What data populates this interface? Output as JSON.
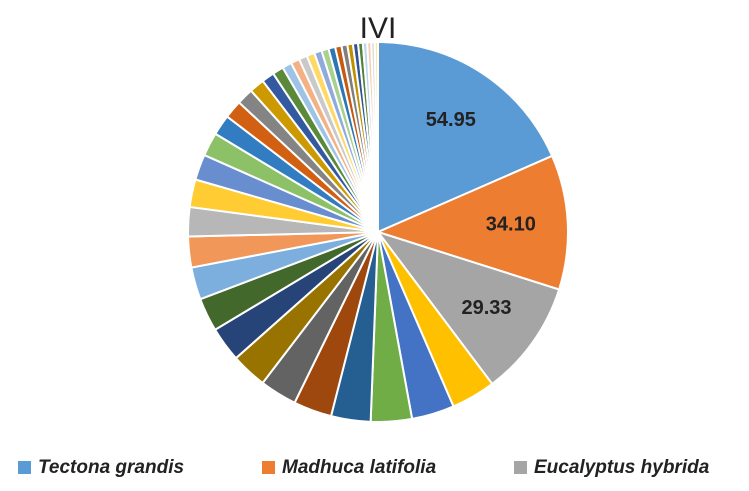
{
  "chart_data": {
    "type": "pie",
    "title": "IVI",
    "categories": [
      "Tectona grandis",
      "Madhuca latifolia",
      "Eucalyptus hybrida",
      null,
      null,
      null,
      null,
      null,
      null,
      null,
      null,
      null,
      null,
      null,
      null,
      null,
      null,
      null,
      null,
      null,
      null,
      null,
      null,
      null,
      null,
      null,
      null,
      null,
      null,
      null,
      null,
      null,
      null,
      null,
      null,
      null,
      null,
      null,
      null,
      null
    ],
    "values": [
      54.95,
      34.1,
      29.33,
      11.2,
      10.8,
      10.4,
      10.0,
      9.7,
      9.4,
      9.1,
      8.8,
      8.5,
      8.2,
      7.8,
      7.4,
      7.0,
      6.5,
      6.0,
      5.2,
      4.6,
      4.2,
      3.8,
      3.2,
      2.8,
      2.4,
      2.2,
      2.1,
      2.0,
      1.9,
      1.8,
      1.7,
      1.6,
      1.5,
      1.4,
      1.3,
      1.2,
      1.1,
      1.0,
      0.9,
      0.8
    ],
    "value_labels": [
      "54.95",
      "34.10",
      "29.33",
      null,
      null,
      null,
      null,
      null,
      null,
      null,
      null,
      null,
      null,
      null,
      null,
      null,
      null,
      null,
      null,
      null,
      null,
      null,
      null,
      null,
      null,
      null,
      null,
      null,
      null,
      null,
      null,
      null,
      null,
      null,
      null,
      null,
      null,
      null,
      null,
      null
    ],
    "colors": [
      "#5b9bd5",
      "#ed7d31",
      "#a5a5a5",
      "#ffc000",
      "#4472c4",
      "#70ad47",
      "#255e91",
      "#9e480e",
      "#636363",
      "#997300",
      "#264478",
      "#43682b",
      "#7cafdd",
      "#f1975a",
      "#b7b7b7",
      "#ffcd33",
      "#698ed0",
      "#8cc168",
      "#327dc2",
      "#d26012",
      "#848484",
      "#cc9a00",
      "#335aa1",
      "#5a8a39",
      "#9dc3e6",
      "#f4b183",
      "#c9c9c9",
      "#ffd966",
      "#8faadc",
      "#a9d18e",
      "#2e75b6",
      "#c55a11",
      "#7f7f7f",
      "#bf9000",
      "#2f5597",
      "#548235",
      "#bdd7ee",
      "#f8cbad",
      "#dbdbdb",
      "#ffe699"
    ],
    "legend": "bottom"
  }
}
